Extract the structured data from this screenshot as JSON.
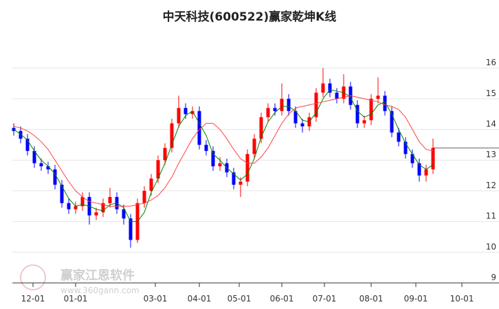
{
  "chart_data": {
    "type": "candlestick",
    "title": "中天科技(600522)赢家乾坤K线",
    "watermark": {
      "name": "赢家江恩软件",
      "url": "www.360gann.com"
    },
    "up_color": "#ff0000",
    "down_color": "#0000ff",
    "open": [
      14.05,
      13.95,
      13.7,
      13.3,
      12.9,
      12.8,
      12.7,
      12.2,
      11.6,
      11.4,
      11.5,
      11.8,
      11.2,
      11.3,
      11.6,
      11.8,
      11.4,
      11.1,
      10.4,
      11.6,
      12.0,
      12.4,
      13.0,
      13.4,
      14.2,
      14.7,
      14.5,
      14.6,
      13.5,
      13.3,
      12.8,
      12.9,
      12.6,
      12.2,
      12.3,
      13.2,
      13.7,
      14.4,
      14.7,
      14.6,
      15.0,
      14.6,
      14.2,
      14.1,
      14.4,
      15.2,
      15.5,
      15.2,
      15.0,
      15.4,
      14.8,
      14.2,
      14.3,
      15.0,
      15.1,
      14.6,
      13.9,
      13.6,
      13.2,
      12.9,
      12.5,
      12.7
    ],
    "high": [
      14.2,
      14.1,
      13.85,
      13.45,
      13.05,
      12.95,
      12.85,
      12.35,
      11.75,
      11.65,
      11.95,
      11.95,
      11.45,
      11.75,
      12.1,
      11.95,
      11.55,
      11.25,
      11.75,
      12.15,
      12.55,
      13.15,
      13.55,
      14.35,
      15.1,
      14.85,
      14.75,
      14.75,
      13.65,
      13.45,
      13.1,
      13.05,
      12.75,
      12.45,
      13.35,
      13.85,
      14.55,
      14.85,
      14.85,
      15.5,
      15.15,
      14.75,
      14.35,
      14.55,
      15.35,
      16.0,
      15.65,
      15.35,
      15.8,
      15.55,
      14.95,
      14.45,
      15.15,
      15.7,
      15.25,
      14.75,
      14.05,
      13.75,
      13.35,
      13.05,
      12.85,
      13.7
    ],
    "low": [
      13.8,
      13.55,
      13.15,
      12.75,
      12.65,
      12.55,
      12.05,
      11.45,
      11.25,
      11.25,
      11.35,
      10.9,
      11.05,
      11.15,
      11.45,
      11.25,
      10.9,
      10.15,
      10.3,
      11.45,
      11.85,
      12.25,
      12.85,
      13.25,
      14.05,
      14.35,
      14.35,
      13.35,
      13.15,
      12.65,
      12.65,
      12.45,
      12.05,
      11.8,
      12.15,
      13.05,
      13.55,
      14.25,
      14.45,
      14.45,
      14.45,
      14.05,
      13.9,
      13.95,
      14.25,
      15.05,
      15.05,
      14.85,
      14.85,
      14.65,
      14.05,
      14.05,
      14.15,
      14.85,
      14.45,
      13.75,
      13.45,
      13.05,
      12.75,
      12.3,
      12.3,
      12.55
    ],
    "close": [
      13.95,
      13.7,
      13.3,
      12.9,
      12.8,
      12.7,
      12.2,
      11.6,
      11.4,
      11.5,
      11.8,
      11.2,
      11.3,
      11.6,
      11.8,
      11.4,
      11.1,
      10.4,
      11.6,
      12.0,
      12.4,
      13.0,
      13.4,
      14.2,
      14.7,
      14.5,
      14.6,
      13.5,
      13.3,
      12.8,
      12.9,
      12.6,
      12.2,
      12.3,
      13.2,
      13.7,
      14.4,
      14.7,
      14.6,
      15.0,
      14.6,
      14.2,
      14.1,
      14.4,
      15.2,
      15.5,
      15.2,
      15.0,
      15.4,
      14.8,
      14.2,
      14.3,
      15.0,
      15.1,
      14.6,
      13.9,
      13.6,
      13.2,
      12.9,
      12.5,
      12.7,
      13.4
    ],
    "lines": [
      {
        "color": "#008000",
        "values": [
          14.0,
          13.85,
          13.65,
          13.3,
          13.0,
          12.8,
          12.55,
          12.15,
          11.75,
          11.5,
          11.55,
          11.5,
          11.4,
          11.35,
          11.55,
          11.6,
          11.45,
          11.0,
          11.0,
          11.3,
          11.95,
          12.4,
          12.9,
          13.5,
          14.1,
          14.45,
          14.6,
          14.2,
          13.8,
          13.2,
          13.0,
          12.75,
          12.55,
          12.35,
          12.55,
          13.05,
          13.75,
          14.25,
          14.55,
          14.75,
          14.75,
          14.6,
          14.3,
          14.25,
          14.55,
          15.0,
          15.3,
          15.25,
          15.2,
          15.05,
          14.6,
          14.4,
          14.5,
          14.8,
          14.9,
          14.5,
          14.0,
          13.55,
          13.2,
          12.85,
          12.7,
          12.85
        ]
      },
      {
        "color": "#ff4040",
        "values": [
          14.1,
          14.05,
          13.95,
          13.8,
          13.6,
          13.35,
          13.0,
          12.65,
          12.3,
          12.0,
          11.8,
          11.65,
          11.6,
          11.55,
          11.5,
          11.5,
          11.5,
          11.5,
          11.55,
          11.6,
          11.7,
          11.85,
          12.1,
          12.45,
          12.9,
          13.3,
          13.7,
          14.0,
          14.2,
          14.2,
          14.0,
          13.7,
          13.35,
          13.05,
          12.9,
          12.9,
          13.1,
          13.4,
          13.8,
          14.2,
          14.5,
          14.7,
          14.75,
          14.8,
          14.85,
          14.9,
          14.95,
          15.0,
          15.05,
          15.1,
          15.05,
          15.0,
          14.95,
          14.9,
          14.8,
          14.75,
          14.65,
          14.4,
          14.0,
          13.6,
          13.35,
          13.3
        ]
      }
    ],
    "xlim": [
      -0.2,
      70.6
    ],
    "xticks": [
      {
        "value": 2.8,
        "label": "12-01"
      },
      {
        "value": 9,
        "label": "01-01"
      },
      {
        "value": 20.6,
        "label": "03-01"
      },
      {
        "value": 27,
        "label": "04-01"
      },
      {
        "value": 32.8,
        "label": "05-01"
      },
      {
        "value": 39,
        "label": "06-01"
      },
      {
        "value": 45.2,
        "label": "07-01"
      },
      {
        "value": 52,
        "label": "08-01"
      },
      {
        "value": 58.5,
        "label": "09-01"
      },
      {
        "value": 65.2,
        "label": "10-01"
      }
    ],
    "ylim": [
      9,
      17.1
    ],
    "yticks": [
      9,
      10,
      11,
      12,
      13,
      14,
      15,
      16
    ],
    "grid": true
  }
}
